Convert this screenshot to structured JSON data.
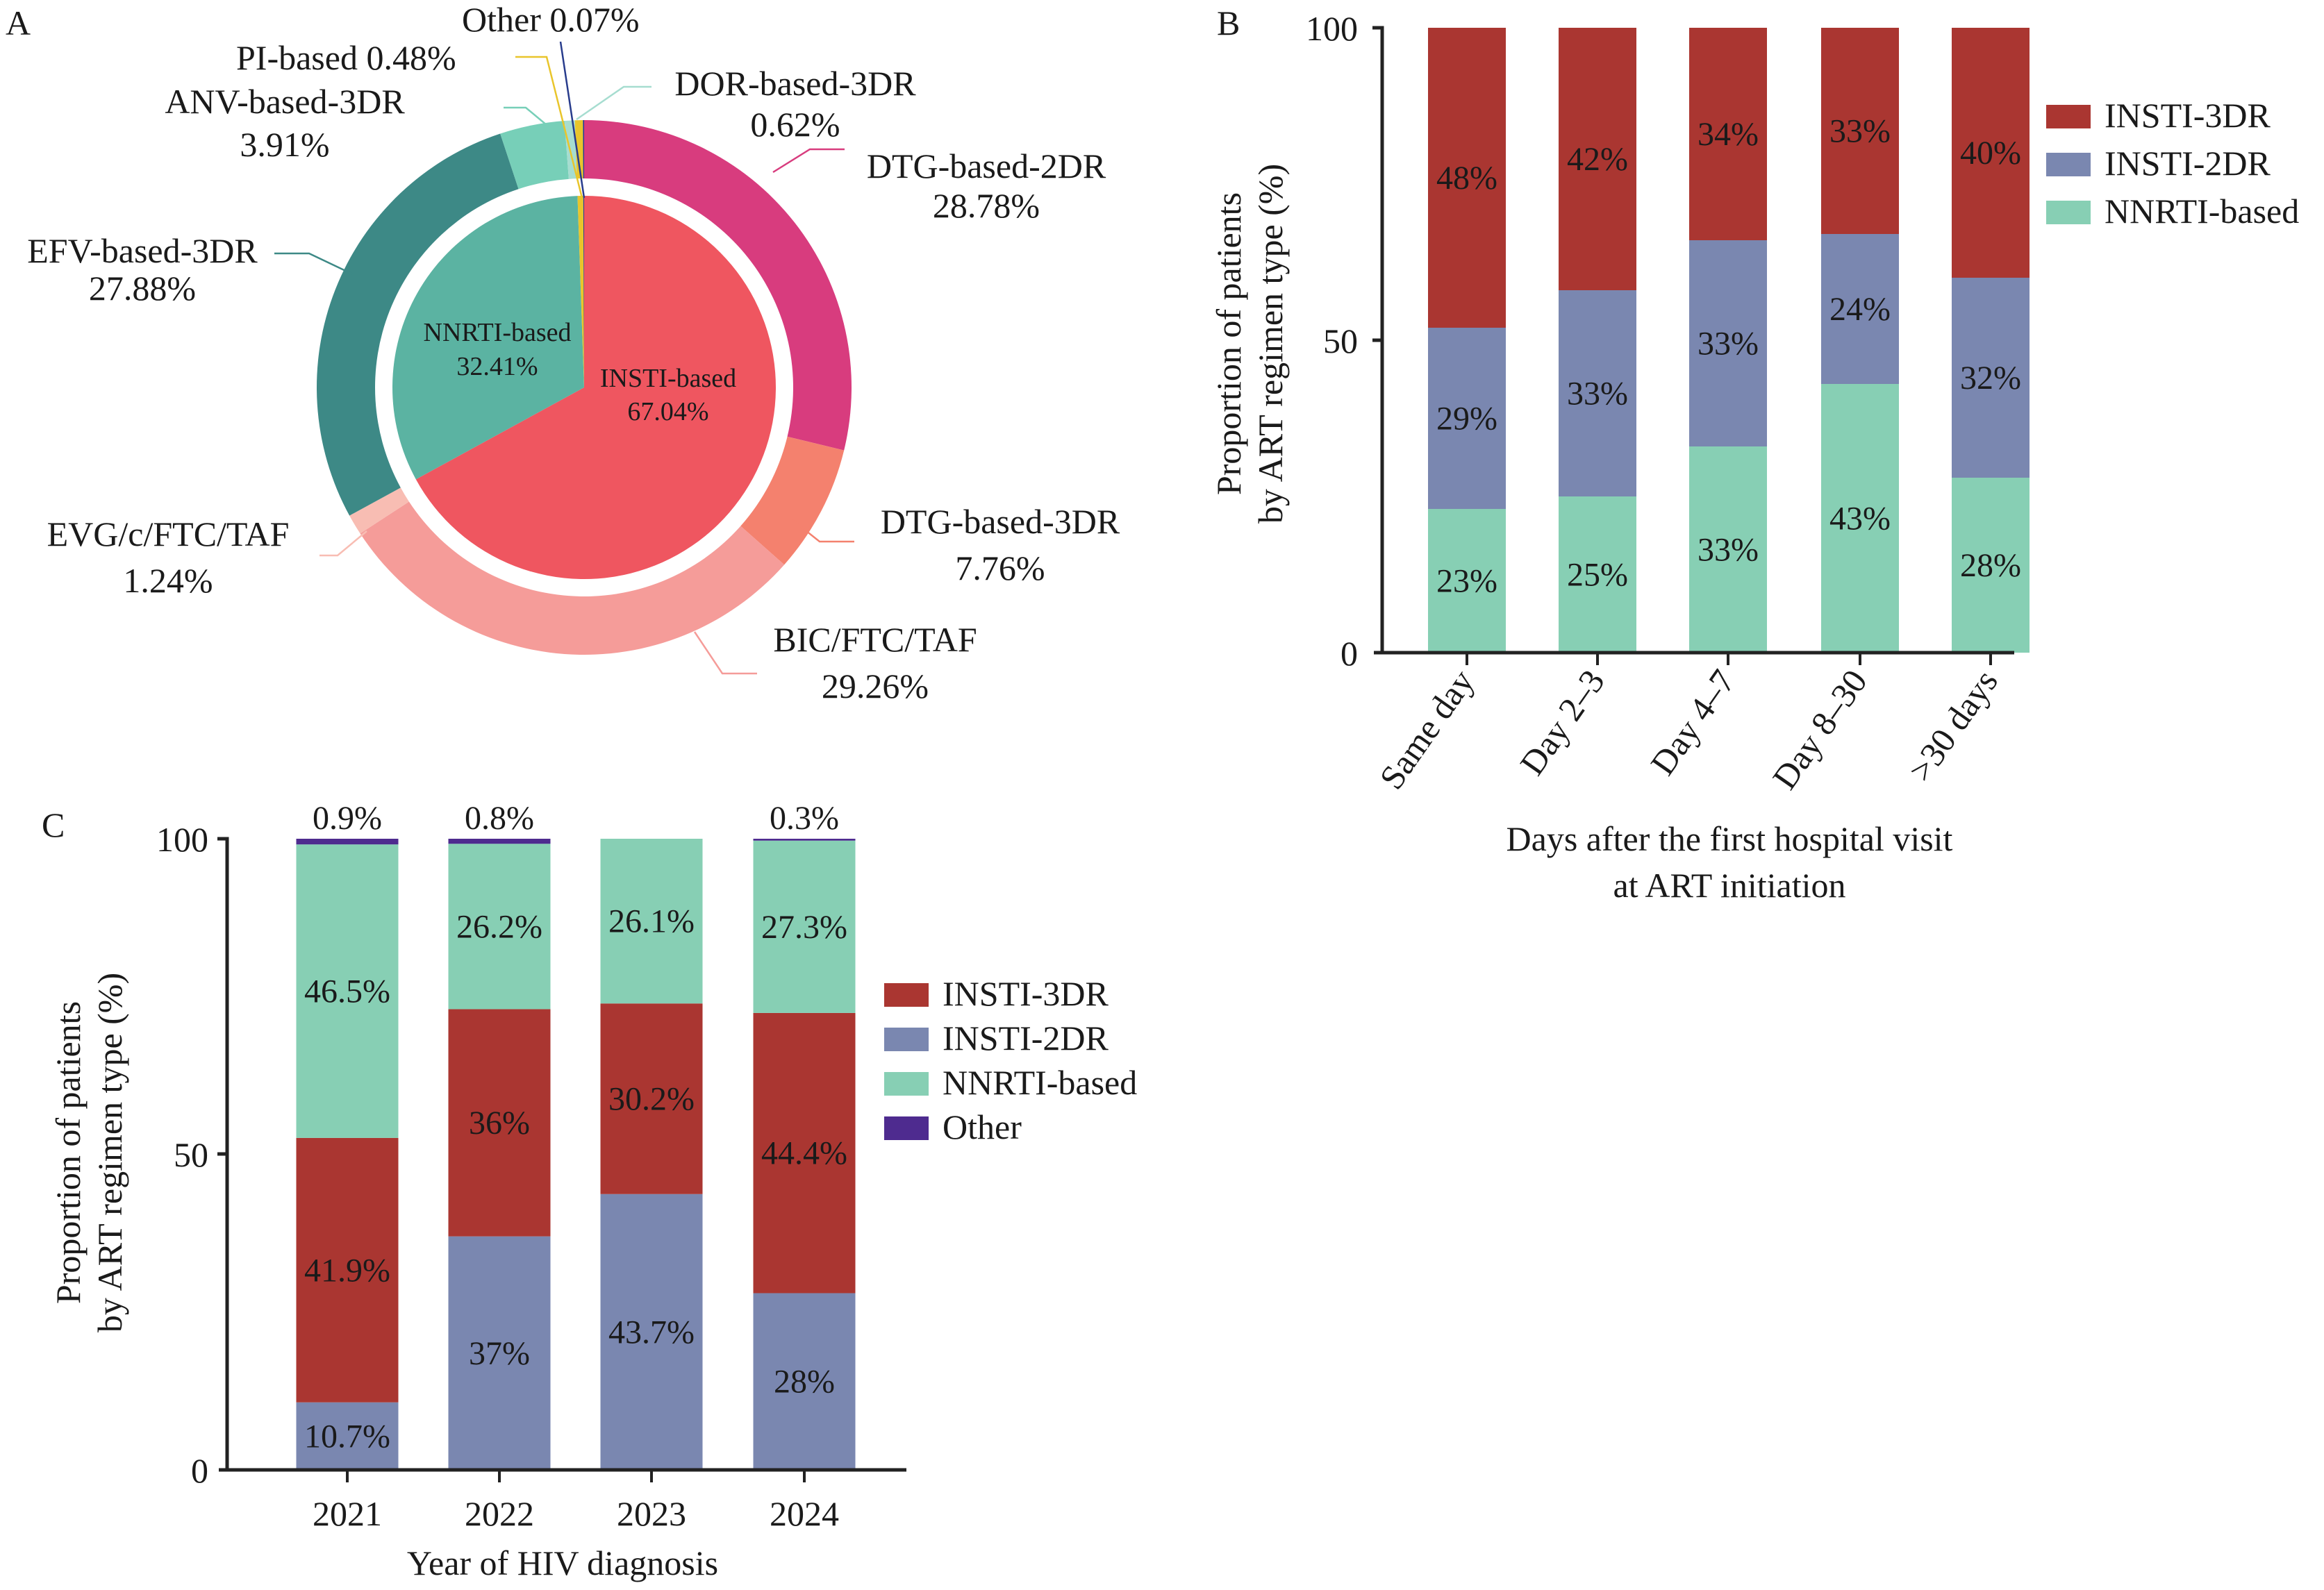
{
  "figure": {
    "panels": [
      "A",
      "B",
      "C"
    ]
  },
  "chart_data": [
    {
      "panel": "A",
      "type": "pie",
      "title": "",
      "inner": [
        {
          "name": "INSTI-based",
          "value": 67.04,
          "label": "67.04%",
          "color": "#EF5660"
        },
        {
          "name": "NNRTI-based",
          "value": 32.41,
          "label": "32.41%",
          "color": "#5BB3A2"
        },
        {
          "name": "PI-based",
          "value": 0.48,
          "label": "",
          "color": "#E9C52B"
        },
        {
          "name": "Other",
          "value": 0.07,
          "label": "",
          "color": "#283C8C"
        }
      ],
      "outer": [
        {
          "name": "DTG-based-2DR",
          "value": 28.78,
          "label": "28.78%",
          "color": "#D83C7E"
        },
        {
          "name": "DTG-based-3DR",
          "value": 7.76,
          "label": "7.76%",
          "color": "#F4816E"
        },
        {
          "name": "BIC/FTC/TAF",
          "value": 29.26,
          "label": "29.26%",
          "color": "#F59C99"
        },
        {
          "name": "EVG/c/FTC/TAF",
          "value": 1.24,
          "label": "1.24%",
          "color": "#F8BDB3"
        },
        {
          "name": "EFV-based-3DR",
          "value": 27.88,
          "label": "27.88%",
          "color": "#3D8986"
        },
        {
          "name": "ANV-based-3DR",
          "value": 3.91,
          "label": "3.91%",
          "color": "#77CFB8"
        },
        {
          "name": "DOR-based-3DR",
          "value": 0.62,
          "label": "0.62%",
          "color": "#A6DDD0"
        },
        {
          "name": "PI-based",
          "value": 0.48,
          "label": "0.48%",
          "color": "#E9C52B"
        },
        {
          "name": "Other",
          "value": 0.07,
          "label": "0.07%",
          "color": "#283C8C"
        }
      ],
      "callouts": {
        "other": "Other 0.07%",
        "pi": "PI-based 0.48%",
        "anv": [
          "ANV-based-3DR",
          "3.91%"
        ],
        "dor": [
          "DOR-based-3DR",
          "0.62%"
        ],
        "dtg2": [
          "DTG-based-2DR",
          "28.78%"
        ],
        "efv": [
          "EFV-based-3DR",
          "27.88%"
        ],
        "evg": [
          "EVG/c/FTC/TAF",
          "1.24%"
        ],
        "dtg3": [
          "DTG-based-3DR",
          "7.76%"
        ],
        "bic": [
          "BIC/FTC/TAF",
          "29.26%"
        ],
        "inner_nnrti": [
          "NNRTI-based",
          "32.41%"
        ],
        "inner_insti": [
          "INSTI-based",
          "67.04%"
        ]
      }
    },
    {
      "panel": "B",
      "type": "bar",
      "stacked": true,
      "categories": [
        "Same day",
        "Day 2–3",
        "Day 4–7",
        "Day 8–30",
        ">30 days"
      ],
      "series": [
        {
          "name": "NNRTI-based",
          "values": [
            23,
            25,
            33,
            43,
            28
          ],
          "labels": [
            "23%",
            "25%",
            "33%",
            "43%",
            "28%"
          ],
          "color": "#87CFB4"
        },
        {
          "name": "INSTI-2DR",
          "values": [
            29,
            33,
            33,
            24,
            32
          ],
          "labels": [
            "29%",
            "33%",
            "33%",
            "24%",
            "32%"
          ],
          "color": "#7A87B0"
        },
        {
          "name": "INSTI-3DR",
          "values": [
            48,
            42,
            34,
            33,
            40
          ],
          "labels": [
            "48%",
            "42%",
            "34%",
            "33%",
            "40%"
          ],
          "color": "#AA3631"
        }
      ],
      "legend": [
        "INSTI-3DR",
        "INSTI-2DR",
        "NNRTI-based"
      ],
      "legend_position": "right",
      "xlabel": [
        "Days after the first hospital visit",
        "at ART initiation"
      ],
      "ylabel": [
        "Proportion of patients",
        "by ART regimen type (%)"
      ],
      "ylim": [
        0,
        100
      ],
      "yticks": [
        "0",
        "50",
        "100"
      ],
      "grid": false
    },
    {
      "panel": "C",
      "type": "bar",
      "stacked": true,
      "categories": [
        "2021",
        "2022",
        "2023",
        "2024"
      ],
      "series": [
        {
          "name": "INSTI-2DR",
          "values": [
            10.7,
            37,
            43.7,
            28
          ],
          "labels": [
            "10.7%",
            "37%",
            "43.7%",
            "28%"
          ],
          "color": "#7A87B0"
        },
        {
          "name": "INSTI-3DR",
          "values": [
            41.9,
            36,
            30.2,
            44.4
          ],
          "labels": [
            "41.9%",
            "36%",
            "30.2%",
            "44.4%"
          ],
          "color": "#AA3631"
        },
        {
          "name": "NNRTI-based",
          "values": [
            46.5,
            26.2,
            26.1,
            27.3
          ],
          "labels": [
            "46.5%",
            "26.2%",
            "26.1%",
            "27.3%"
          ],
          "color": "#87CFB4"
        },
        {
          "name": "Other",
          "values": [
            0.9,
            0.8,
            0,
            0.3
          ],
          "labels": [
            "0.9%",
            "0.8%",
            "",
            "0.3%"
          ],
          "color": "#4E2B8F"
        }
      ],
      "legend": [
        "INSTI-3DR",
        "INSTI-2DR",
        "NNRTI-based",
        "Other"
      ],
      "legend_position": "right",
      "xlabel": "Year of HIV diagnosis",
      "ylabel": [
        "Proportion of patients",
        "by ART regimen type (%)"
      ],
      "ylim": [
        0,
        100
      ],
      "yticks": [
        "0",
        "50",
        "100"
      ],
      "grid": false
    }
  ]
}
